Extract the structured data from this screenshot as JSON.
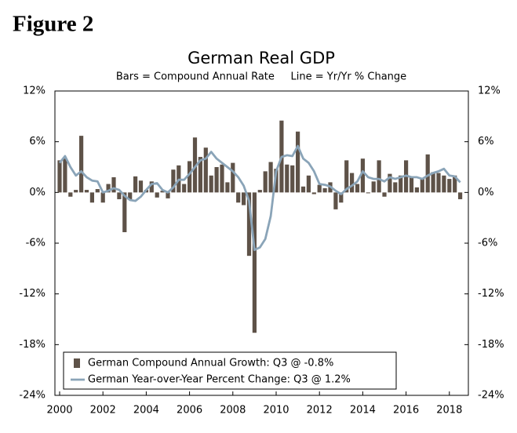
{
  "header": {
    "title": "Figure 2"
  },
  "chart_data": {
    "type": "bar-line",
    "title": "German Real GDP",
    "subtitle": "Bars = Compound Annual Rate     Line = Yr/Yr % Change",
    "categories": [
      "2000",
      null,
      null,
      null,
      null,
      null,
      null,
      null,
      "2002",
      null,
      null,
      null,
      null,
      null,
      null,
      null,
      "2004",
      null,
      null,
      null,
      null,
      null,
      null,
      null,
      "2006",
      null,
      null,
      null,
      null,
      null,
      null,
      null,
      "2008",
      null,
      null,
      null,
      null,
      null,
      null,
      null,
      "2010",
      null,
      null,
      null,
      null,
      null,
      null,
      null,
      "2012",
      null,
      null,
      null,
      null,
      null,
      null,
      null,
      "2014",
      null,
      null,
      null,
      null,
      null,
      null,
      null,
      "2016",
      null,
      null,
      null,
      null,
      null,
      null,
      null,
      "2018",
      null,
      null
    ],
    "series": [
      {
        "name": "German Compound Annual Growth: Q3 @ -0.8%",
        "type": "bar",
        "color": "#5e5248",
        "values": [
          3.8,
          4.0,
          -0.5,
          0.3,
          6.7,
          0.3,
          -1.2,
          0.4,
          -1.2,
          1.0,
          1.8,
          -0.8,
          -4.7,
          -0.8,
          1.9,
          1.4,
          0.3,
          1.3,
          -0.6,
          0.2,
          -0.7,
          2.7,
          3.2,
          1.0,
          3.7,
          6.5,
          4.2,
          5.3,
          2.0,
          3.0,
          3.3,
          1.2,
          3.5,
          -1.2,
          -1.5,
          -7.5,
          -16.6,
          0.3,
          2.5,
          3.6,
          2.8,
          8.5,
          3.3,
          3.2,
          7.2,
          0.7,
          2.0,
          -0.2,
          0.9,
          0.5,
          1.2,
          -2.0,
          -1.2,
          3.8,
          2.3,
          1.0,
          4.0,
          -0.1,
          1.3,
          3.8,
          -0.5,
          2.2,
          1.2,
          2.0,
          3.8,
          1.8,
          0.6,
          1.6,
          4.5,
          2.4,
          2.3,
          2.0,
          1.6,
          2.0,
          -0.8
        ]
      },
      {
        "name": "German Year-over-Year Percent Change: Q3 @ 1.2%",
        "type": "line",
        "color": "#8aa4b8",
        "values": [
          3.5,
          4.3,
          3.0,
          2.0,
          2.5,
          1.8,
          1.4,
          1.3,
          0.0,
          0.2,
          0.5,
          0.3,
          -0.4,
          -0.9,
          -1.0,
          -0.5,
          0.3,
          1.0,
          1.1,
          0.3,
          0.0,
          0.6,
          1.5,
          1.5,
          2.2,
          3.0,
          3.8,
          4.0,
          4.8,
          4.0,
          3.5,
          3.0,
          2.5,
          1.8,
          0.8,
          -1.0,
          -6.8,
          -6.5,
          -5.5,
          -2.8,
          2.5,
          4.2,
          4.4,
          4.3,
          5.5,
          4.0,
          3.5,
          2.5,
          1.0,
          0.9,
          0.7,
          0.2,
          -0.2,
          0.4,
          0.8,
          1.3,
          2.5,
          1.8,
          1.6,
          1.6,
          1.3,
          1.8,
          1.6,
          1.8,
          2.0,
          1.8,
          1.8,
          1.6,
          2.0,
          2.3,
          2.5,
          2.8,
          2.0,
          1.9,
          1.2
        ]
      }
    ],
    "ylim": [
      -24,
      12
    ],
    "yticks": [
      {
        "value": -24,
        "label": "-24%"
      },
      {
        "value": -18,
        "label": "-18%"
      },
      {
        "value": -12,
        "label": "-12%"
      },
      {
        "value": -6,
        "label": "-6%"
      },
      {
        "value": 0,
        "label": "0%"
      },
      {
        "value": 6,
        "label": "6%"
      },
      {
        "value": 12,
        "label": "12%"
      }
    ],
    "y2lim": [
      -24,
      12
    ],
    "y2ticks": [
      {
        "value": -24,
        "label": "-24%"
      },
      {
        "value": -18,
        "label": "-18%"
      },
      {
        "value": -12,
        "label": "-12%"
      },
      {
        "value": -6,
        "label": "-6%"
      },
      {
        "value": 0,
        "label": "0%"
      },
      {
        "value": 6,
        "label": "6%"
      },
      {
        "value": 12,
        "label": "12%"
      }
    ],
    "grid": false
  }
}
